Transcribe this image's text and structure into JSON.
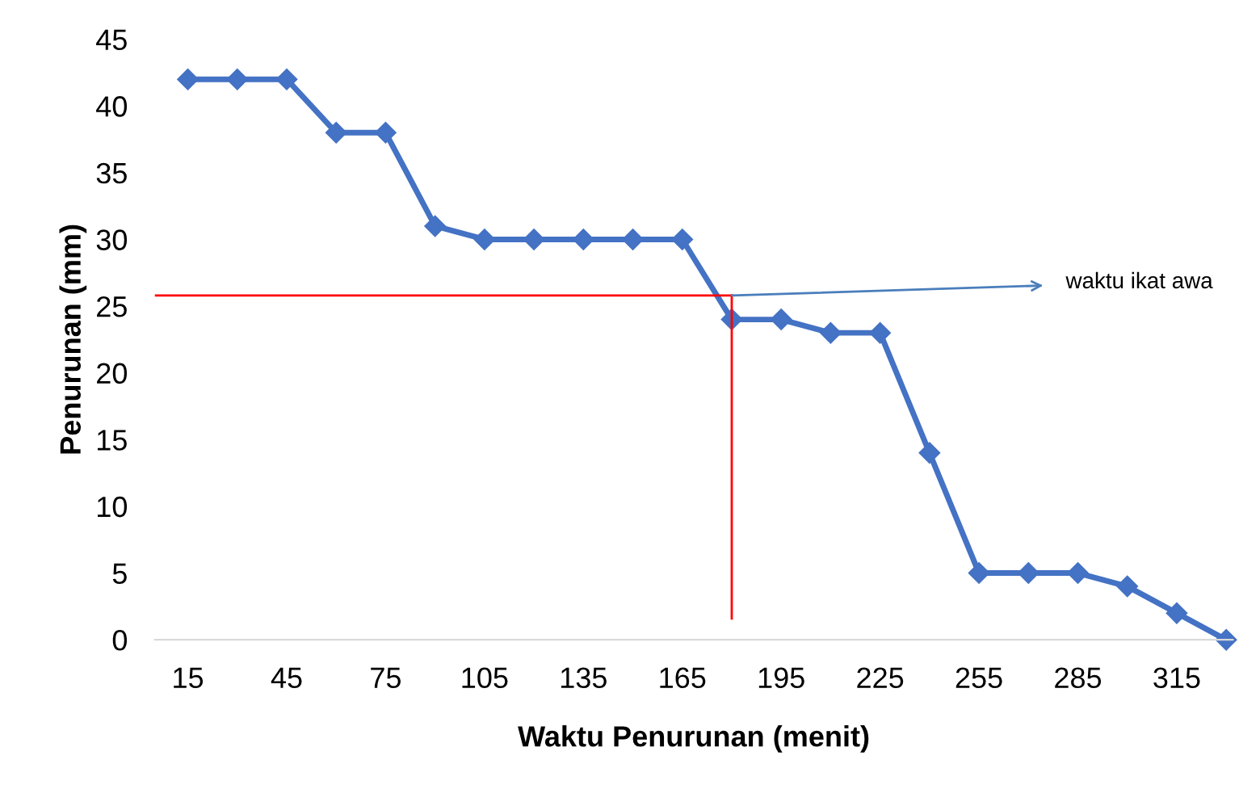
{
  "chart_data": {
    "type": "line",
    "xlabel": "Waktu Penurunan (menit)",
    "ylabel": "Penurunan (mm)",
    "x": [
      15,
      30,
      45,
      60,
      75,
      90,
      105,
      120,
      135,
      150,
      165,
      180,
      195,
      210,
      225,
      240,
      255,
      270,
      285,
      300,
      315,
      330
    ],
    "series": [
      {
        "color": "#4472c4",
        "values": [
          42,
          42,
          42,
          38,
          38,
          31,
          30,
          30,
          30,
          30,
          30,
          24,
          24,
          23,
          23,
          14,
          5,
          5,
          5,
          4,
          2,
          0
        ]
      }
    ],
    "xlim": [
      5,
      332
    ],
    "xticks": [
      15,
      45,
      75,
      105,
      135,
      165,
      195,
      225,
      255,
      285,
      315
    ],
    "ylim": [
      0,
      45
    ],
    "yticks": [
      0,
      5,
      10,
      15,
      20,
      25,
      30,
      35,
      40,
      45
    ],
    "ref_lines": [
      {
        "axis": "y",
        "value": 25.8,
        "color": "#ff0000"
      },
      {
        "axis": "x",
        "value": 180,
        "color": "#ff0000"
      }
    ],
    "annotations": [
      {
        "text": "waktu ikat awa",
        "x": 180,
        "y": 25.8
      }
    ],
    "marker": "diamond",
    "line_style": "solid",
    "grid": false,
    "legend": false
  }
}
